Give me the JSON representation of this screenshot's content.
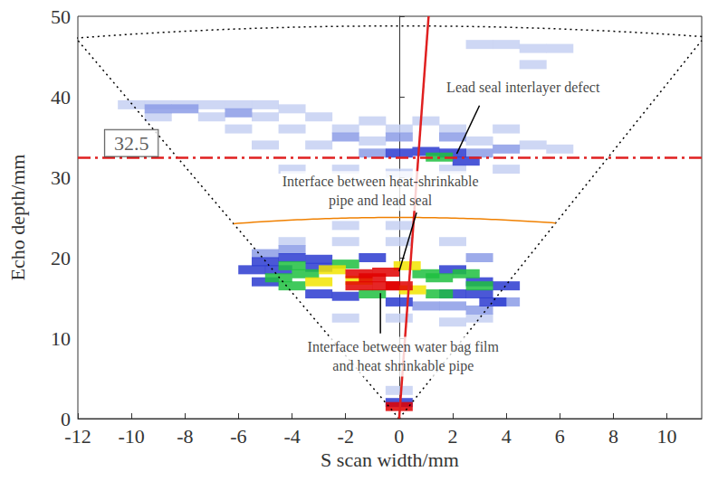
{
  "chart_data": {
    "type": "scatter",
    "xlabel": "S scan width/mm",
    "ylabel": "Echo depth/mm",
    "xlim": [
      -12,
      11.3
    ],
    "xticks": [
      -12,
      -10,
      -8,
      -6,
      -4,
      -2,
      0,
      2,
      4,
      6,
      8,
      10
    ],
    "ylim": [
      0,
      50
    ],
    "yticks": [
      0,
      10,
      20,
      30,
      40,
      50
    ],
    "grid": false,
    "series": [
      {
        "color": "#c6d0f2",
        "values": [
          [
            -10,
            39
          ],
          [
            -9,
            39
          ],
          [
            -8,
            39
          ],
          [
            -7,
            39
          ],
          [
            -6,
            39
          ],
          [
            -5,
            39
          ],
          [
            -4,
            38.5
          ],
          [
            -9,
            37.5
          ],
          [
            -7,
            37.5
          ],
          [
            -5,
            37.5
          ],
          [
            -3,
            37.5
          ],
          [
            -1,
            37
          ],
          [
            1,
            37
          ],
          [
            -6,
            36
          ],
          [
            -4,
            36
          ],
          [
            -2,
            36
          ],
          [
            0,
            36
          ],
          [
            2,
            36
          ],
          [
            4,
            36
          ],
          [
            -5,
            34
          ],
          [
            -3,
            34
          ],
          [
            -1,
            34.5
          ],
          [
            3,
            34.5
          ],
          [
            5,
            34
          ],
          [
            6,
            33.5
          ],
          [
            -4,
            31
          ],
          [
            -2,
            31
          ],
          [
            0,
            30.5
          ],
          [
            2,
            31
          ],
          [
            4,
            31
          ],
          [
            3,
            46.5
          ],
          [
            4,
            46.5
          ],
          [
            5,
            46
          ],
          [
            6,
            46
          ],
          [
            5,
            44
          ],
          [
            -4,
            22
          ],
          [
            -2,
            22
          ],
          [
            0,
            22
          ],
          [
            2,
            22
          ],
          [
            -2,
            24
          ],
          [
            0,
            24
          ],
          [
            -2,
            12.5
          ],
          [
            0,
            12.5
          ],
          [
            2,
            12
          ],
          [
            3,
            12.5
          ],
          [
            0,
            3.5
          ]
        ]
      },
      {
        "color": "#8c9ce6",
        "values": [
          [
            -9,
            38.5
          ],
          [
            -8,
            38.5
          ],
          [
            -6,
            38
          ],
          [
            -2,
            35
          ],
          [
            0,
            35
          ],
          [
            2,
            35
          ],
          [
            -1,
            33
          ],
          [
            3,
            33
          ],
          [
            4,
            33.5
          ],
          [
            -5,
            20.5
          ],
          [
            -4,
            21
          ],
          [
            3,
            20
          ],
          [
            1,
            14
          ],
          [
            2,
            14
          ],
          [
            3,
            13.5
          ],
          [
            4,
            14.5
          ]
        ]
      },
      {
        "color": "#2b3bd0",
        "values": [
          [
            0,
            33
          ],
          [
            1,
            33.2
          ],
          [
            2,
            33
          ],
          [
            2.5,
            32
          ],
          [
            -5,
            19.5
          ],
          [
            -4,
            20
          ],
          [
            -3,
            19.8
          ],
          [
            -1,
            20
          ],
          [
            -5.5,
            18.5
          ],
          [
            -4.5,
            18.5
          ],
          [
            -3,
            18.8
          ],
          [
            2,
            18.5
          ],
          [
            -5,
            17
          ],
          [
            3,
            17
          ],
          [
            4,
            16.5
          ],
          [
            -3,
            15.5
          ],
          [
            -2,
            15.2
          ],
          [
            2,
            15.5
          ],
          [
            3,
            15.5
          ],
          [
            0,
            14.5
          ],
          [
            3.5,
            14.5
          ],
          [
            0,
            2
          ]
        ]
      },
      {
        "color": "#1fc040",
        "values": [
          [
            1.5,
            32.5
          ],
          [
            -4,
            19
          ],
          [
            -2,
            19.2
          ],
          [
            -3.5,
            18
          ],
          [
            1,
            18
          ],
          [
            2.5,
            18
          ],
          [
            -4.5,
            17.5
          ],
          [
            1.5,
            17.5
          ],
          [
            -4,
            16.5
          ],
          [
            3,
            16.5
          ],
          [
            -1,
            15.5
          ],
          [
            1.5,
            15.5
          ]
        ]
      },
      {
        "color": "#f2e400",
        "values": [
          [
            -2.5,
            18.5
          ],
          [
            -3,
            17
          ],
          [
            -1.5,
            17.2
          ],
          [
            0.5,
            16
          ],
          [
            0.3,
            19
          ]
        ]
      },
      {
        "color": "#e00000",
        "values": [
          [
            -1.5,
            18
          ],
          [
            -0.5,
            18.2
          ],
          [
            -1,
            17.5
          ],
          [
            -1.5,
            16.5
          ],
          [
            -0.5,
            16.5
          ],
          [
            0,
            16.5
          ],
          [
            0,
            1.5
          ]
        ]
      }
    ],
    "fan_edges": {
      "color": "#000000",
      "line_style": "dotted",
      "lines": [
        [
          [
            0,
            0
          ],
          [
            -12,
            47
          ]
        ],
        [
          [
            0,
            0
          ],
          [
            11.3,
            47
          ]
        ]
      ]
    },
    "arcs": [
      {
        "radius": 48.8,
        "color": "#000000",
        "line_style": "dotted"
      },
      {
        "radius": 25,
        "color": "#f08000",
        "line_style": "solid"
      }
    ],
    "beam": {
      "color": "#e02020",
      "points": [
        [
          0,
          0
        ],
        [
          1.1,
          50
        ]
      ]
    },
    "reference_line": {
      "y": 32.5,
      "label": "32.5",
      "color": "#e02020",
      "line_style": "dashdot"
    },
    "annotations": [
      {
        "text": "Lead seal interlayer defect",
        "x": 2.15,
        "y": 32.9
      },
      {
        "text": "Interface between heat-shrinkable\npipe and lead seal",
        "x": 0,
        "y": 18.3
      },
      {
        "text": "Interface between water bag film\nand heat shrinkable pipe",
        "x": -0.7,
        "y": 15.6
      }
    ]
  }
}
